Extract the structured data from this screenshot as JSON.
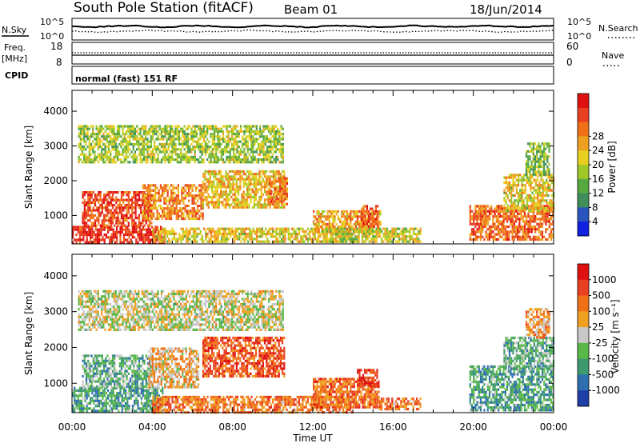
{
  "header": {
    "title": "South Pole Station (fitACF)",
    "beam": "Beam 01",
    "date": "18/Jun/2014"
  },
  "top_panels": {
    "nsky_label": "N.Sky",
    "nsearch_label": "N.Search",
    "noise_ticks": [
      "10^5",
      "10^0"
    ],
    "freq_label_1": "Freq.",
    "freq_label_2": "[MHz]",
    "freq_ticks": [
      "18",
      "8"
    ],
    "nave_label": "Nave",
    "nave_ticks": [
      "60",
      "0"
    ],
    "cpid_label": "CPID",
    "cpid_text": "normal (fast) 151 RF"
  },
  "chart_data": [
    {
      "type": "heatmap",
      "name": "power-panel",
      "ylabel": "Slant Range [km]",
      "ylim": [
        180,
        4600
      ],
      "yticks": [
        "1000",
        "2000",
        "3000",
        "4000"
      ],
      "xlim_hours": [
        0,
        24
      ],
      "colorbar_label": "Power [dB]",
      "colorbar_ticks": [
        "4",
        "8",
        "12",
        "16",
        "20",
        "24",
        "28"
      ],
      "colorbar_colors": [
        "#1020e0",
        "#2a55c0",
        "#3f8f5a",
        "#58a840",
        "#a0c828",
        "#e8d020",
        "#f0a020",
        "#f07018",
        "#e84020",
        "#e01010"
      ],
      "echo_regions": [
        {
          "t0": 0.0,
          "t1": 4.6,
          "r0": 220,
          "r1": 700,
          "level": 0.92
        },
        {
          "t0": 0.5,
          "t1": 4.0,
          "r0": 700,
          "r1": 1700,
          "level": 0.85
        },
        {
          "t0": 3.5,
          "t1": 6.5,
          "r0": 900,
          "r1": 1900,
          "level": 0.7
        },
        {
          "t0": 4.0,
          "t1": 14.0,
          "r0": 220,
          "r1": 650,
          "level": 0.55
        },
        {
          "t0": 6.5,
          "t1": 10.6,
          "r0": 1200,
          "r1": 2300,
          "level": 0.6
        },
        {
          "t0": 9.8,
          "t1": 10.7,
          "r0": 1300,
          "r1": 2100,
          "level": 0.75
        },
        {
          "t0": 12.0,
          "t1": 15.4,
          "r0": 500,
          "r1": 1150,
          "level": 0.65
        },
        {
          "t0": 14.4,
          "t1": 15.2,
          "r0": 700,
          "r1": 1300,
          "level": 0.85
        },
        {
          "t0": 12.5,
          "t1": 17.4,
          "r0": 220,
          "r1": 650,
          "level": 0.5
        },
        {
          "t0": 19.8,
          "t1": 24.0,
          "r0": 300,
          "r1": 1300,
          "level": 0.78
        },
        {
          "t0": 21.5,
          "t1": 24.0,
          "r0": 1100,
          "r1": 2200,
          "level": 0.55
        },
        {
          "t0": 22.6,
          "t1": 23.8,
          "r0": 2200,
          "r1": 3100,
          "level": 0.4
        },
        {
          "t0": 0.3,
          "t1": 10.5,
          "r0": 2500,
          "r1": 3600,
          "level": 0.45
        }
      ]
    },
    {
      "type": "heatmap",
      "name": "velocity-panel",
      "ylabel": "Slant Range [km]",
      "ylim": [
        180,
        4600
      ],
      "yticks": [
        "1000",
        "2000",
        "3000",
        "4000"
      ],
      "xlim_hours": [
        0,
        24
      ],
      "xlabel": "Time UT",
      "xticks": [
        "00:00",
        "04:00",
        "08:00",
        "12:00",
        "16:00",
        "20:00",
        "00:00"
      ],
      "colorbar_label": "Velocity [m s⁻¹]",
      "colorbar_ticks": [
        "1000",
        "500",
        "100",
        "25",
        "-25",
        "-100",
        "-500",
        "-1000"
      ],
      "colorbar_colors": [
        "#1f3fa8",
        "#2e6fb0",
        "#3c9a6e",
        "#5ab848",
        "#c8c8c8",
        "#f0a020",
        "#f07018",
        "#e84020",
        "#e01010"
      ],
      "echo_regions": [
        {
          "t0": 0.0,
          "t1": 4.5,
          "r0": 220,
          "r1": 900,
          "level": 0.3
        },
        {
          "t0": 0.5,
          "t1": 4.0,
          "r0": 900,
          "r1": 1800,
          "level": 0.35
        },
        {
          "t0": 3.8,
          "t1": 6.3,
          "r0": 900,
          "r1": 2000,
          "level": 0.6
        },
        {
          "t0": 4.0,
          "t1": 14.0,
          "r0": 220,
          "r1": 650,
          "level": 0.72
        },
        {
          "t0": 6.5,
          "t1": 10.6,
          "r0": 1200,
          "r1": 2300,
          "level": 0.8
        },
        {
          "t0": 12.0,
          "t1": 15.3,
          "r0": 350,
          "r1": 1150,
          "level": 0.75
        },
        {
          "t0": 14.2,
          "t1": 15.2,
          "r0": 900,
          "r1": 1400,
          "level": 0.88
        },
        {
          "t0": 15.3,
          "t1": 17.4,
          "r0": 250,
          "r1": 600,
          "level": 0.72
        },
        {
          "t0": 19.8,
          "t1": 24.0,
          "r0": 250,
          "r1": 1500,
          "level": 0.3
        },
        {
          "t0": 21.5,
          "t1": 24.0,
          "r0": 1400,
          "r1": 2300,
          "level": 0.35
        },
        {
          "t0": 22.6,
          "t1": 23.8,
          "r0": 2300,
          "r1": 3100,
          "level": 0.65
        },
        {
          "t0": 0.3,
          "t1": 10.5,
          "r0": 2500,
          "r1": 3600,
          "level": 0.5
        }
      ]
    }
  ]
}
